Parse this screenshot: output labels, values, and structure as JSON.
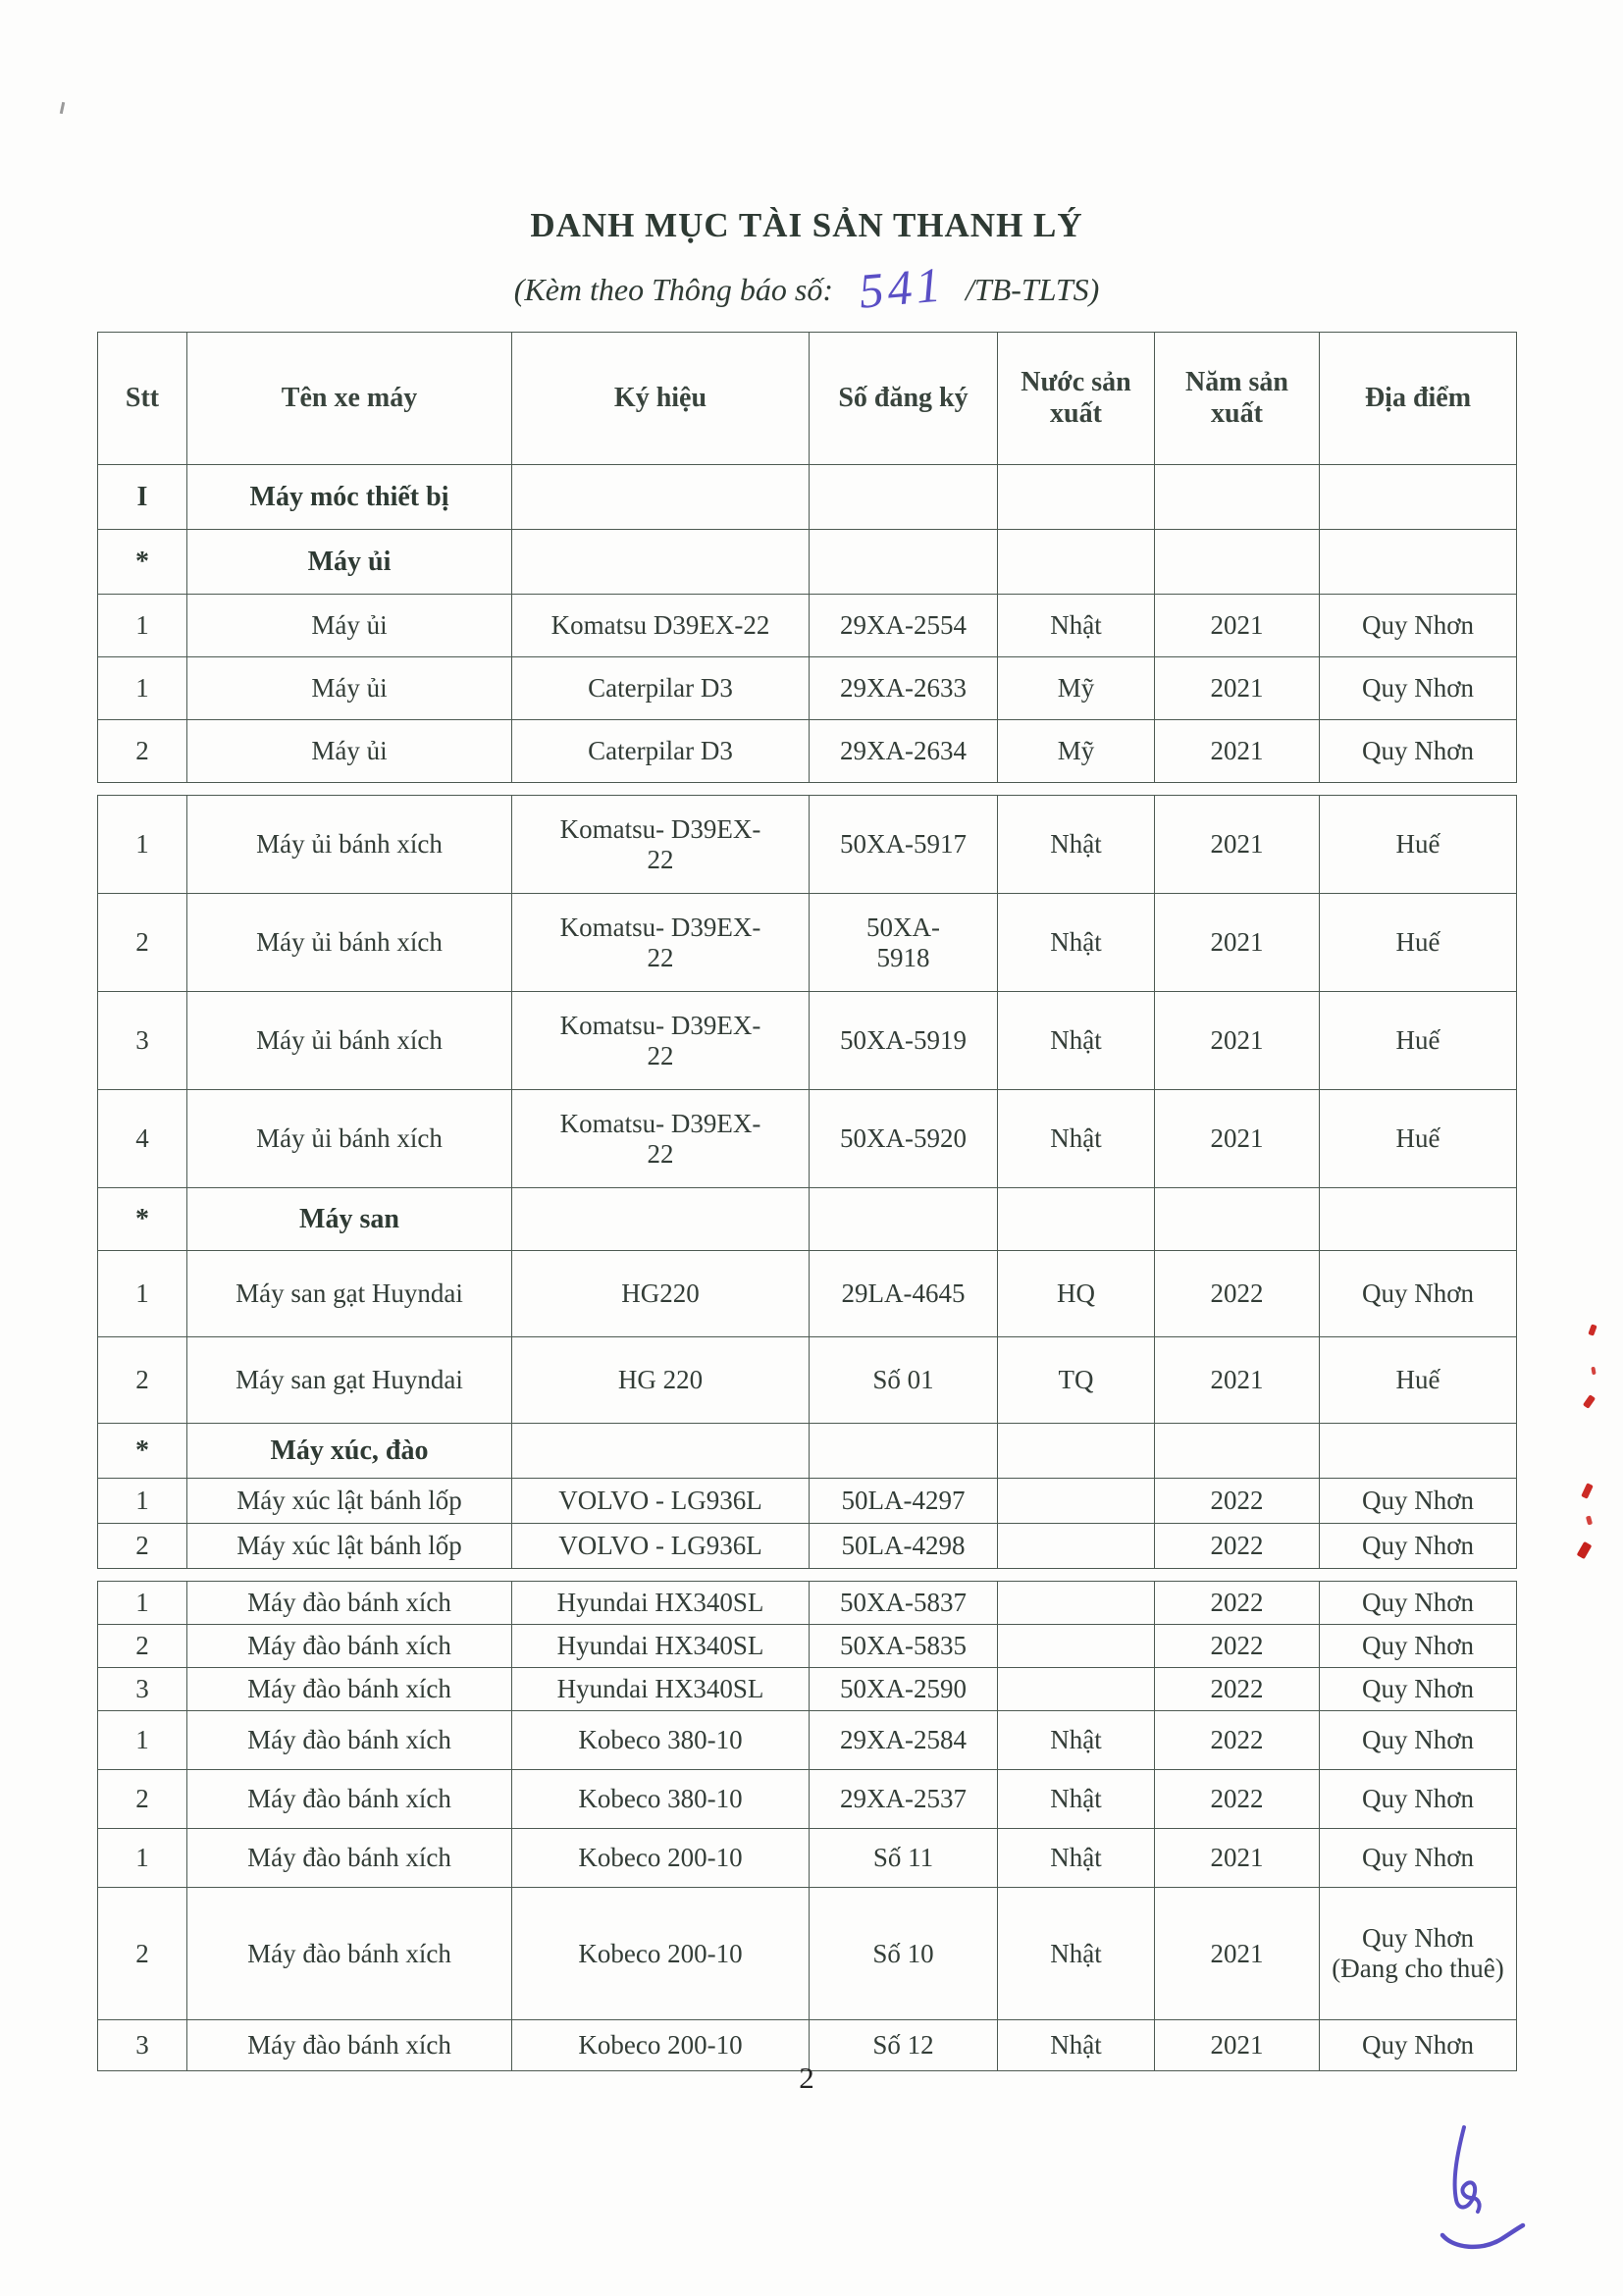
{
  "page": {
    "title": "DANH MỤC TÀI SẢN THANH LÝ",
    "subtitle_prefix": "(Kèm theo Thông báo số:",
    "subtitle_number": "541",
    "subtitle_suffix": "/TB-TLTS)",
    "page_number": "2"
  },
  "colors": {
    "handwriting_ink": "#5a4fc5",
    "artifact_red": "#cc2b26",
    "text": "#333d37",
    "border": "#4d5a52"
  },
  "table": {
    "headers": [
      "Stt",
      "Tên xe máy",
      "Ký hiệu",
      "Số đăng ký",
      "Nước sản xuất",
      "Năm sản xuất",
      "Địa điểm"
    ],
    "blocks": [
      {
        "rows": [
          {
            "type": "section",
            "h": 66,
            "cells": [
              "I",
              "Máy móc thiết bị",
              "",
              "",
              "",
              "",
              ""
            ]
          },
          {
            "type": "section",
            "h": 66,
            "cells": [
              "*",
              "Máy ủi",
              "",
              "",
              "",
              "",
              ""
            ]
          },
          {
            "type": "data",
            "h": 64,
            "cells": [
              "1",
              "Máy ủi",
              "Komatsu D39EX-22",
              "29XA-2554",
              "Nhật",
              "2021",
              "Quy Nhơn"
            ]
          },
          {
            "type": "data",
            "h": 64,
            "cells": [
              "1",
              "Máy ủi",
              "Caterpilar D3",
              "29XA-2633",
              "Mỹ",
              "2021",
              "Quy Nhơn"
            ]
          },
          {
            "type": "data",
            "h": 64,
            "cells": [
              "2",
              "Máy ủi",
              "Caterpilar D3",
              "29XA-2634",
              "Mỹ",
              "2021",
              "Quy Nhơn"
            ]
          }
        ]
      },
      {
        "rows": [
          {
            "type": "data",
            "h": 100,
            "cells": [
              "1",
              "Máy ủi bánh xích",
              "Komatsu- D39EX-\n22",
              "50XA-5917",
              "Nhật",
              "2021",
              "Huế"
            ]
          },
          {
            "type": "data",
            "h": 100,
            "cells": [
              "2",
              "Máy ủi bánh xích",
              "Komatsu- D39EX-\n22",
              "50XA-\n5918",
              "Nhật",
              "2021",
              "Huế"
            ]
          },
          {
            "type": "data",
            "h": 100,
            "cells": [
              "3",
              "Máy ủi bánh xích",
              "Komatsu- D39EX-\n22",
              "50XA-5919",
              "Nhật",
              "2021",
              "Huế"
            ]
          },
          {
            "type": "data",
            "h": 100,
            "cells": [
              "4",
              "Máy ủi bánh xích",
              "Komatsu- D39EX-\n22",
              "50XA-5920",
              "Nhật",
              "2021",
              "Huế"
            ]
          },
          {
            "type": "section",
            "h": 64,
            "cells": [
              "*",
              "Máy san",
              "",
              "",
              "",
              "",
              ""
            ]
          },
          {
            "type": "data",
            "h": 88,
            "cells": [
              "1",
              "Máy san gạt Huyndai",
              "HG220",
              "29LA-4645",
              "HQ",
              "2022",
              "Quy Nhơn"
            ]
          },
          {
            "type": "data",
            "h": 88,
            "cells": [
              "2",
              "Máy san gạt Huyndai",
              "HG 220",
              "Số 01",
              "TQ",
              "2021",
              "Huế"
            ]
          },
          {
            "type": "section",
            "h": 56,
            "cells": [
              "*",
              "Máy xúc, đào",
              "",
              "",
              "",
              "",
              ""
            ]
          },
          {
            "type": "data",
            "h": 46,
            "cells": [
              "1",
              "Máy xúc lật bánh lốp",
              "VOLVO - LG936L",
              "50LA-4297",
              "",
              "2022",
              "Quy Nhơn"
            ]
          },
          {
            "type": "data",
            "h": 46,
            "cells": [
              "2",
              "Máy xúc lật bánh lốp",
              "VOLVO - LG936L",
              "50LA-4298",
              "",
              "2022",
              "Quy Nhơn"
            ]
          }
        ]
      },
      {
        "rows": [
          {
            "type": "data",
            "h": 44,
            "cells": [
              "1",
              "Máy đào bánh xích",
              "Hyundai HX340SL",
              "50XA-5837",
              "",
              "2022",
              "Quy Nhơn"
            ]
          },
          {
            "type": "data",
            "h": 44,
            "cells": [
              "2",
              "Máy đào bánh xích",
              "Hyundai HX340SL",
              "50XA-5835",
              "",
              "2022",
              "Quy Nhơn"
            ]
          },
          {
            "type": "data",
            "h": 44,
            "cells": [
              "3",
              "Máy đào bánh xích",
              "Hyundai HX340SL",
              "50XA-2590",
              "",
              "2022",
              "Quy Nhơn"
            ]
          },
          {
            "type": "data",
            "h": 60,
            "cells": [
              "1",
              "Máy đào bánh xích",
              "Kobeco 380-10",
              "29XA-2584",
              "Nhật",
              "2022",
              "Quy Nhơn"
            ]
          },
          {
            "type": "data",
            "h": 60,
            "cells": [
              "2",
              "Máy đào bánh xích",
              "Kobeco 380-10",
              "29XA-2537",
              "Nhật",
              "2022",
              "Quy Nhơn"
            ]
          },
          {
            "type": "data",
            "h": 60,
            "cells": [
              "1",
              "Máy đào bánh xích",
              "Kobeco 200-10",
              "Số 11",
              "Nhật",
              "2021",
              "Quy Nhơn"
            ]
          },
          {
            "type": "data",
            "h": 135,
            "cells": [
              "2",
              "Máy đào bánh xích",
              "Kobeco 200-10",
              "Số 10",
              "Nhật",
              "2021",
              "Quy Nhơn (Đang cho thuê)"
            ]
          },
          {
            "type": "data",
            "h": 52,
            "cells": [
              "3",
              "Máy đào bánh xích",
              "Kobeco 200-10",
              "Số 12",
              "Nhật",
              "2021",
              "Quy Nhơn"
            ]
          }
        ]
      }
    ]
  }
}
